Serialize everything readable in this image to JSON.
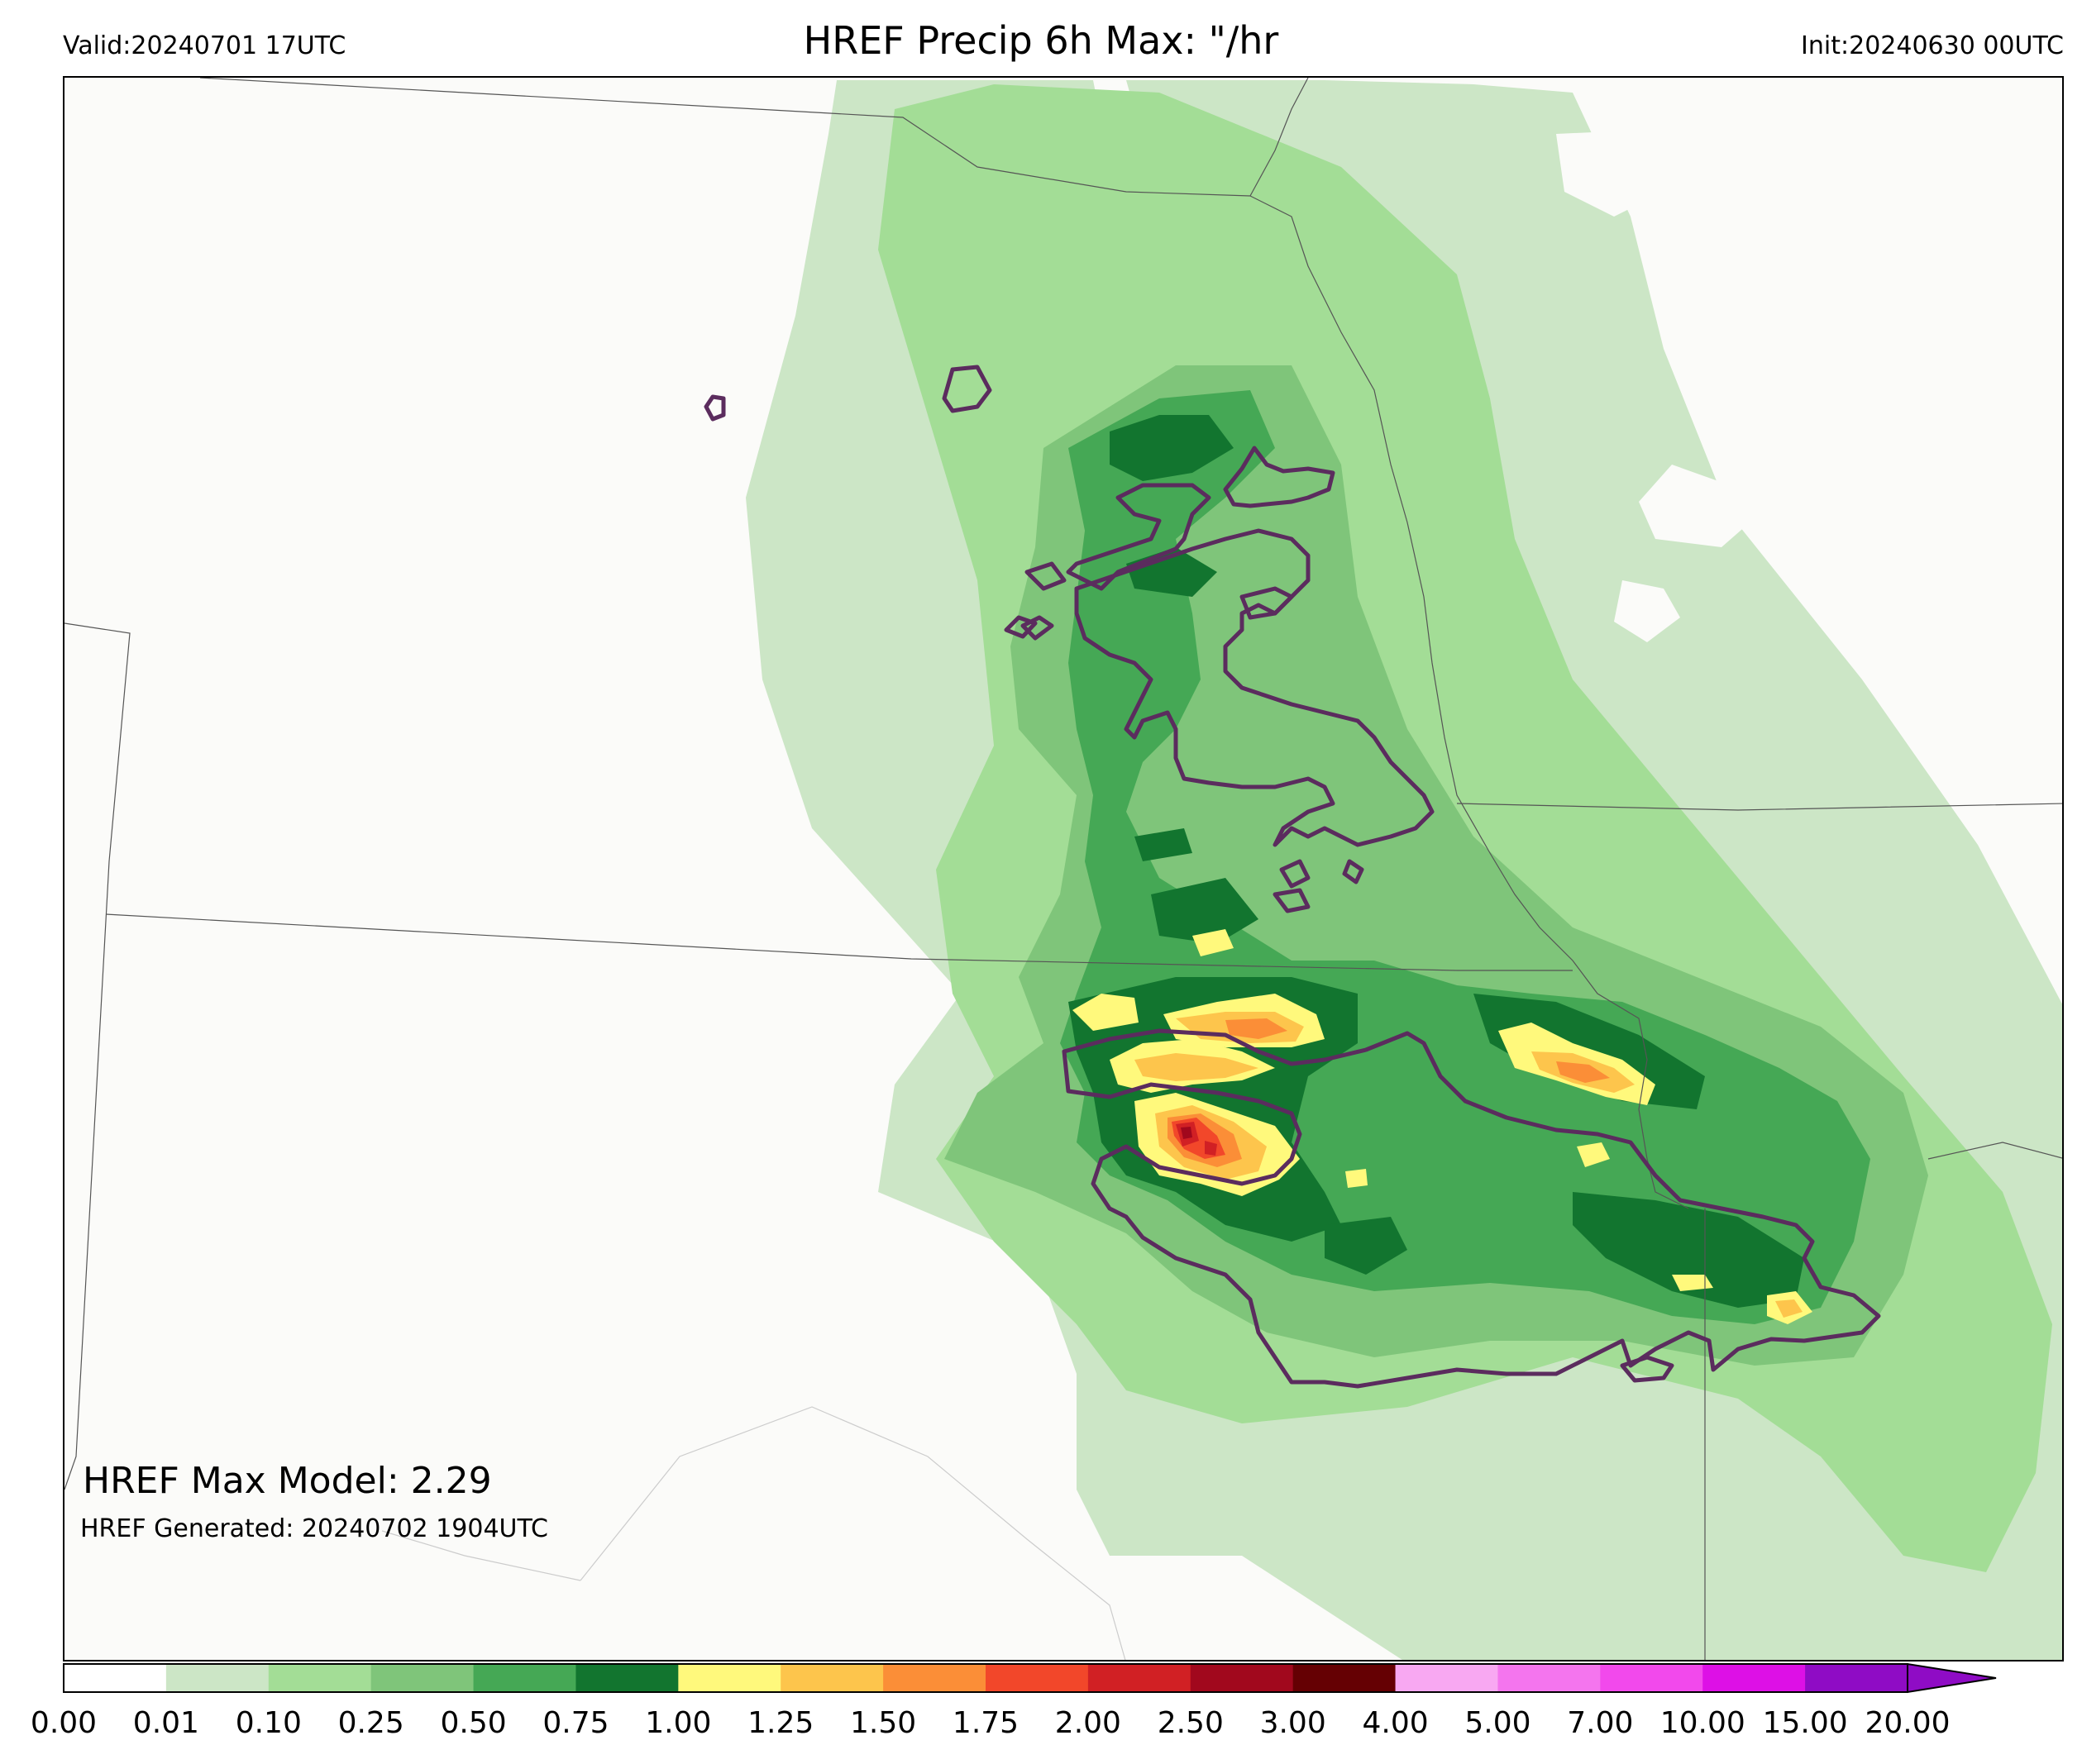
{
  "header": {
    "valid": "Valid:20240701 17UTC",
    "title": "HREF Precip 6h Max: \"/hr",
    "init": "Init:20240630 00UTC"
  },
  "annotations": {
    "max_model": "HREF Max Model: 2.29",
    "generated": "HREF Generated: 20240702 1904UTC"
  },
  "colorbar": {
    "units": "\"/hr",
    "levels": [
      "0.00",
      "0.01",
      "0.10",
      "0.25",
      "0.50",
      "0.75",
      "1.00",
      "1.25",
      "1.50",
      "1.75",
      "2.00",
      "2.50",
      "3.00",
      "4.00",
      "5.00",
      "7.00",
      "10.00",
      "15.00",
      "20.00"
    ],
    "colors": [
      "#ffffff",
      "#cce6c6",
      "#a3dd96",
      "#7fc57a",
      "#45a855",
      "#12752f",
      "#fff97c",
      "#fdc54c",
      "#fb8e37",
      "#f2472a",
      "#d12024",
      "#a1081d",
      "#650003",
      "#f8a8f2",
      "#f475ee",
      "#f249ec",
      "#dd10e6",
      "#8f0cc5"
    ],
    "extend_color": "#8f0cc5"
  },
  "map": {
    "contour_color": "#5b2c5e",
    "boundary_color": "#555555"
  }
}
